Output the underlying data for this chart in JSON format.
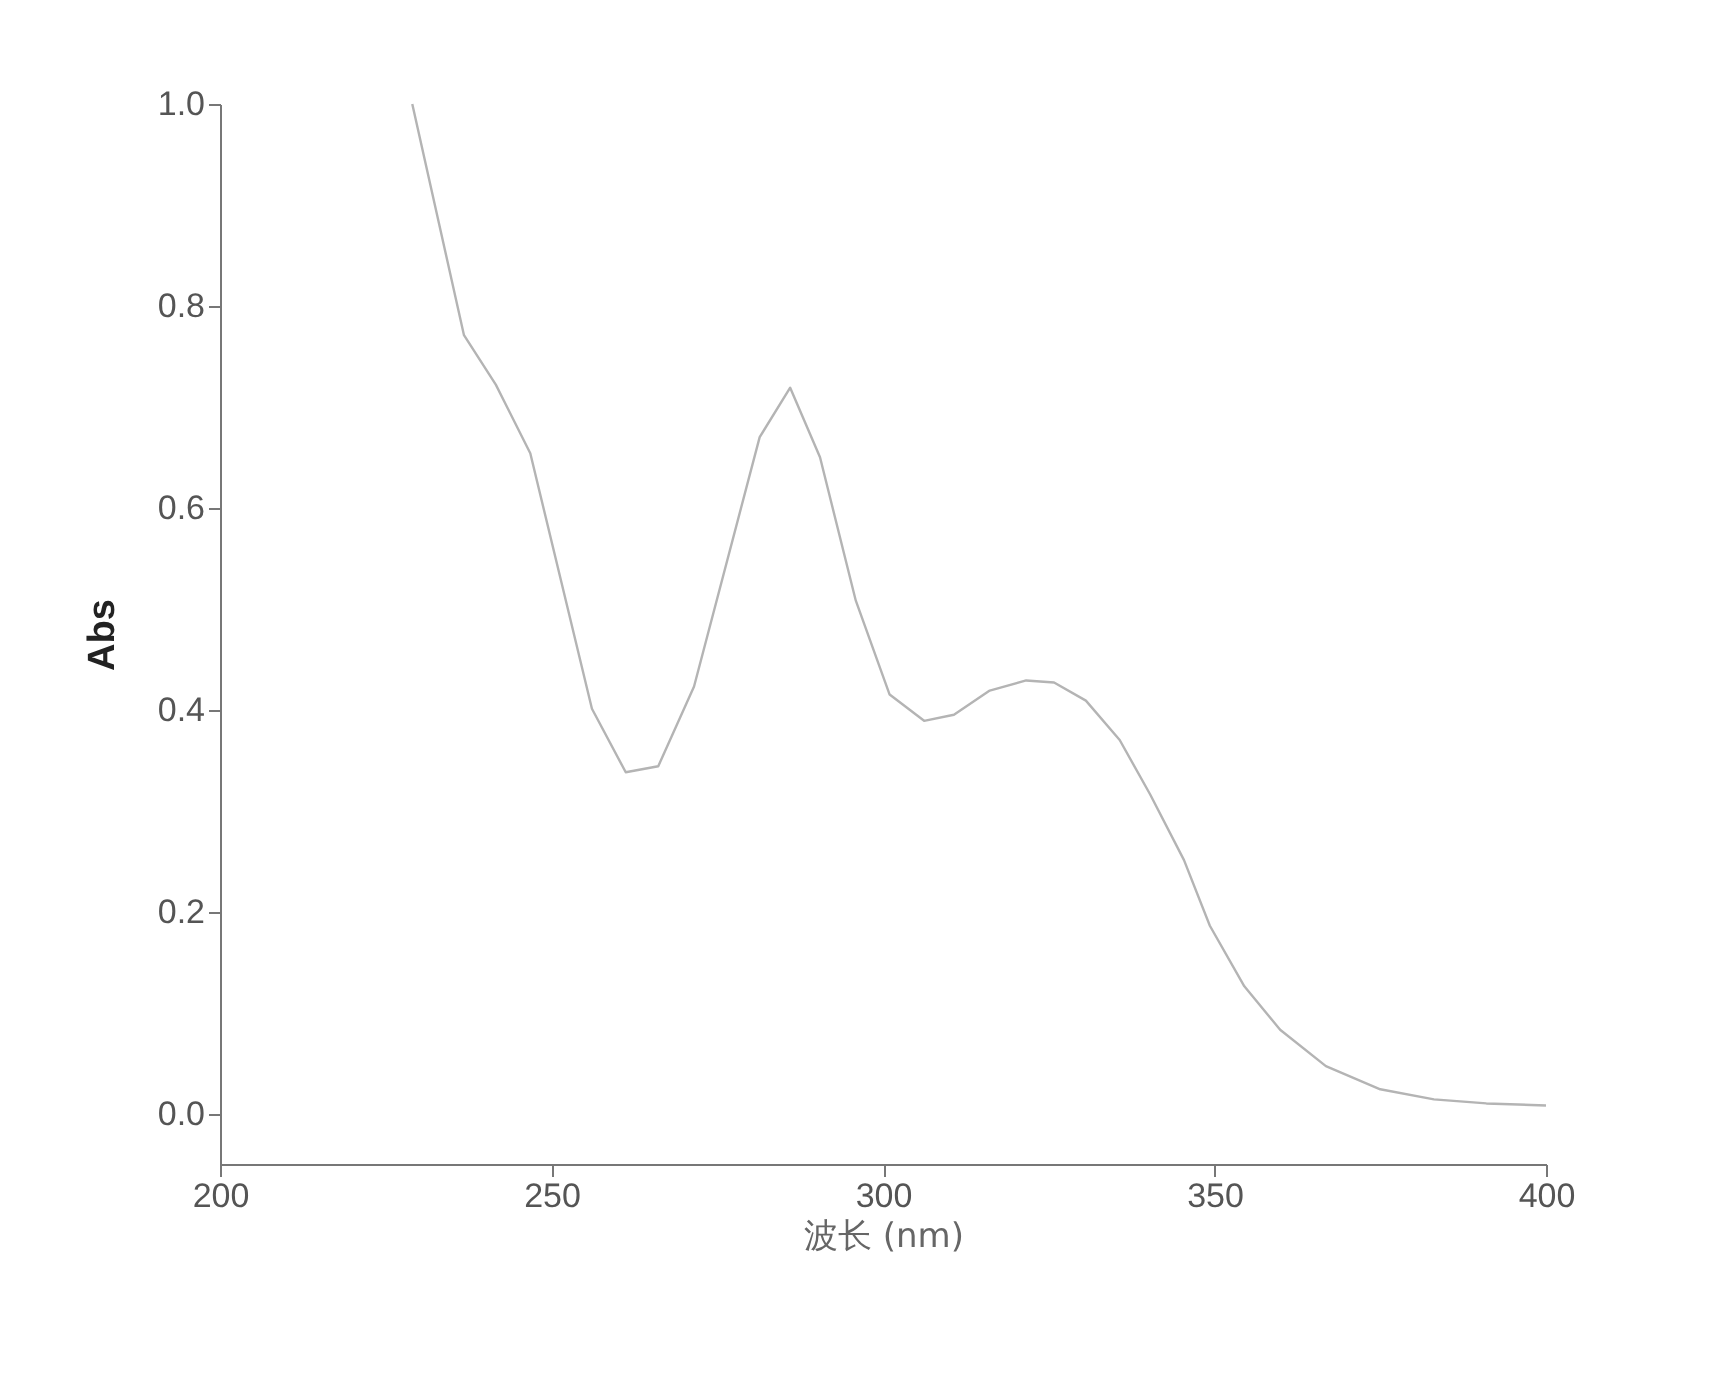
{
  "chart_data": {
    "type": "line",
    "xlabel": "波长 (nm)",
    "ylabel": "Abs",
    "x": [
      229,
      236.8,
      241.6,
      246.8,
      256.1,
      261.2,
      266.1,
      271.5,
      281.4,
      286,
      290.5,
      295.9,
      301,
      306.2,
      310.7,
      316.1,
      321.6,
      325.8,
      330.6,
      335.7,
      340.3,
      345.4,
      349.3,
      354.5,
      359.9,
      366.8,
      375,
      383.1,
      391,
      400
    ],
    "series": [
      {
        "color": "#b4b4b4",
        "values": [
          1.0,
          0.771,
          0.722,
          0.654,
          0.401,
          0.338,
          0.344,
          0.423,
          0.67,
          0.719,
          0.65,
          0.508,
          0.415,
          0.389,
          0.395,
          0.419,
          0.429,
          0.427,
          0.409,
          0.37,
          0.316,
          0.251,
          0.186,
          0.126,
          0.083,
          0.047,
          0.024,
          0.014,
          0.01,
          0.008
        ]
      }
    ],
    "xlim": [
      200,
      400
    ],
    "xticks": [
      200,
      250,
      300,
      350,
      400
    ],
    "ylim": [
      -0.05,
      1.0
    ],
    "yticks": [
      {
        "value": 0,
        "label": "0.0"
      },
      {
        "value": 0.2,
        "label": "0.2"
      },
      {
        "value": 0.4,
        "label": "0.4"
      },
      {
        "value": 0.6,
        "label": "0.6"
      },
      {
        "value": 0.8,
        "label": "0.8"
      },
      {
        "value": 1,
        "label": "1.0"
      }
    ],
    "grid": false,
    "marker": "none",
    "line_style": "solid"
  }
}
